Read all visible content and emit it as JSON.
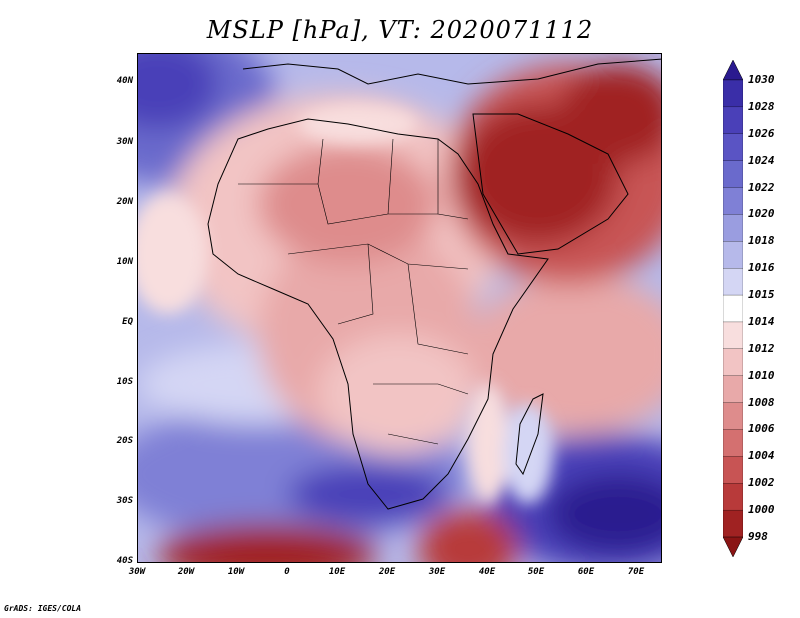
{
  "title": "MSLP [hPa], VT: 2020071112",
  "footer": "GrADS: IGES/COLA",
  "lat_labels": [
    "40N",
    "30N",
    "20N",
    "10N",
    "EQ",
    "10S",
    "20S",
    "30S",
    "40S"
  ],
  "lon_labels": [
    "30W",
    "20W",
    "10W",
    "0",
    "10E",
    "20E",
    "30E",
    "40E",
    "50E",
    "60E",
    "70E"
  ],
  "colorbar": {
    "levels": [
      "1030",
      "1028",
      "1026",
      "1024",
      "1022",
      "1020",
      "1018",
      "1016",
      "1015",
      "1014",
      "1012",
      "1010",
      "1008",
      "1006",
      "1004",
      "1002",
      "1000",
      "998"
    ],
    "colors": [
      "#2a1a8f",
      "#3a2ea8",
      "#4a40b8",
      "#5a54c4",
      "#6a6acc",
      "#7f80d6",
      "#9a9de0",
      "#b6b9ea",
      "#d4d6f4",
      "#ffffff",
      "#f8dede",
      "#f2c4c4",
      "#e8a9a9",
      "#de8c8c",
      "#d47070",
      "#c85454",
      "#b83a3a",
      "#a02222",
      "#8a1414"
    ]
  },
  "colors": {
    "low_pressure": "#a02222",
    "high_pressure": "#2a1a8f",
    "neutral": "#ffffff"
  }
}
